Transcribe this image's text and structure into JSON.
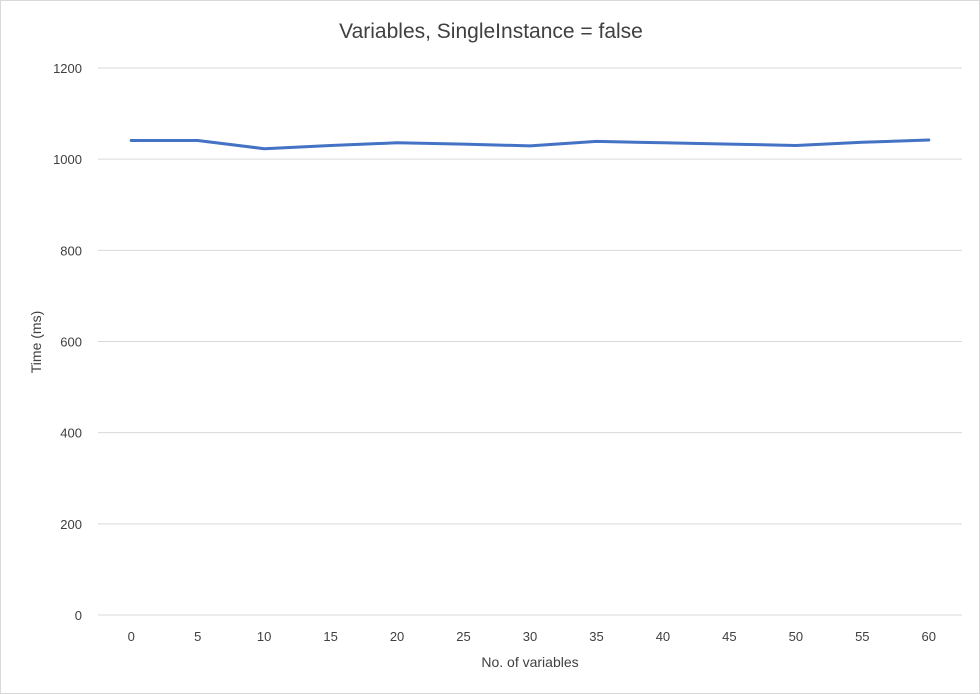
{
  "chart_data": {
    "type": "line",
    "title": "Variables, SingleInstance = false",
    "xlabel": "No. of variables",
    "ylabel": "Time (ms)",
    "ylim": [
      0,
      1200
    ],
    "yticks": [
      0,
      200,
      400,
      600,
      800,
      1000,
      1200
    ],
    "categories": [
      "0",
      "5",
      "10",
      "15",
      "20",
      "25",
      "30",
      "35",
      "40",
      "45",
      "50",
      "55",
      "60"
    ],
    "grid": true,
    "legend": "none",
    "series": [
      {
        "color": "#4472c4",
        "values": [
          1041,
          1041,
          1023,
          1030,
          1036,
          1033,
          1029,
          1039,
          1036,
          1033,
          1030,
          1037,
          1042
        ]
      }
    ]
  },
  "colors": {
    "gridline": "#d9d9d9",
    "text": "#404040",
    "background": "#ffffff"
  }
}
